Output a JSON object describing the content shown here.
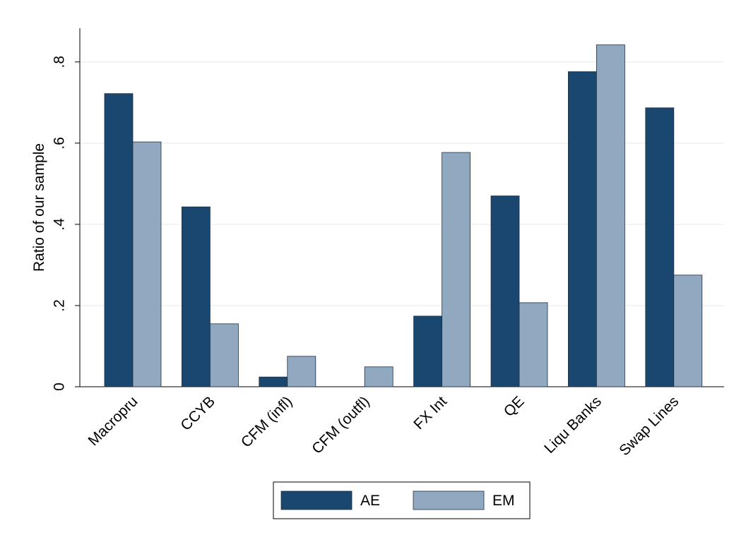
{
  "chart_data": {
    "type": "bar",
    "ylabel": "Ratio of our sample",
    "categories": [
      "Macropru",
      "CCYB",
      "CFM (infl)",
      "CFM (outfl)",
      "FX Int",
      "QE",
      "Liqu Banks",
      "Swap Lines"
    ],
    "series": [
      {
        "name": "AE",
        "color": "#1a476f",
        "values": [
          0.722,
          0.443,
          0.024,
          0,
          0.174,
          0.47,
          0.776,
          0.687
        ]
      },
      {
        "name": "EM",
        "color": "#90a8c0",
        "values": [
          0.603,
          0.155,
          0.075,
          0.049,
          0.577,
          0.207,
          0.842,
          0.275
        ]
      }
    ],
    "ylim": [
      0,
      0.883
    ],
    "yticks": [
      0,
      {
        "value": 0.2,
        "label": ".2"
      },
      {
        "value": 0.4,
        "label": ".4"
      },
      {
        "value": 0.6,
        "label": ".6"
      },
      {
        "value": 0.8,
        "label": ".8"
      }
    ],
    "grid": true,
    "legend": "bottom"
  }
}
